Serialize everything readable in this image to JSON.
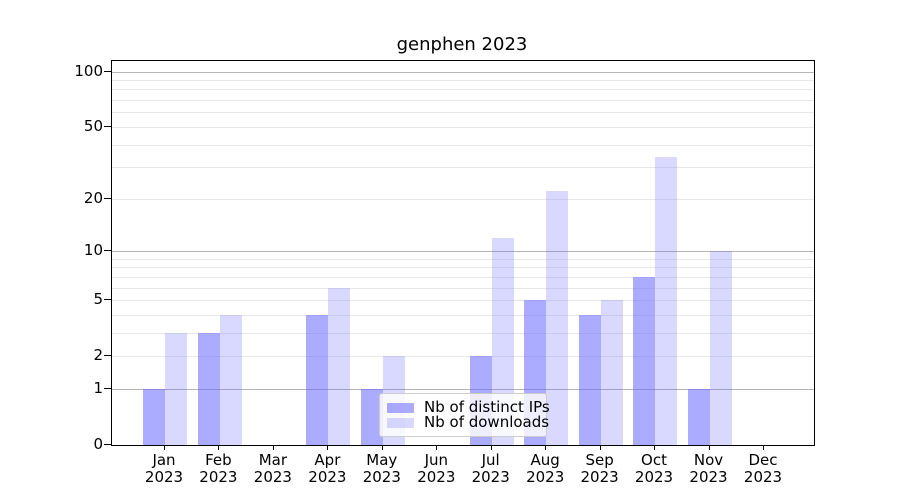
{
  "title": "genphen 2023",
  "chart_data": {
    "type": "bar",
    "title": "genphen 2023",
    "categories": [
      "Jan",
      "Feb",
      "Mar",
      "Apr",
      "May",
      "Jun",
      "Jul",
      "Aug",
      "Sep",
      "Oct",
      "Nov",
      "Dec"
    ],
    "x_tick_year": "2023",
    "x_tick_labels": [
      "Jan 2023",
      "Feb 2023",
      "Mar 2023",
      "Apr 2023",
      "May 2023",
      "Jun 2023",
      "Jul 2023",
      "Aug 2023",
      "Sep 2023",
      "Oct 2023",
      "Nov 2023",
      "Dec 2023"
    ],
    "series": [
      {
        "name": "Nb of distinct IPs",
        "color": "rgba(102,102,255,0.55)",
        "values": [
          1,
          3,
          0,
          4,
          1,
          0,
          2,
          5,
          4,
          7,
          1,
          0
        ]
      },
      {
        "name": "Nb of downloads",
        "color": "rgba(102,102,255,0.25)",
        "values": [
          3,
          4,
          0,
          6,
          2,
          0,
          12,
          22,
          5,
          34,
          10,
          0
        ]
      }
    ],
    "xlabel": "",
    "ylabel": "",
    "y_scale": "log10(1+x)",
    "y_ticks": [
      0,
      1,
      2,
      5,
      10,
      20,
      50,
      100
    ],
    "y_major_gridlines": [
      1,
      10,
      100
    ],
    "y_minor_gridlines": [
      2,
      3,
      4,
      5,
      6,
      7,
      8,
      9,
      20,
      30,
      40,
      50,
      60,
      70,
      80,
      90
    ],
    "ylim": [
      0,
      115
    ],
    "grid": true,
    "legend": {
      "location": "inside-bottom-center",
      "labels": [
        "Nb of distinct IPs",
        "Nb of downloads"
      ]
    },
    "style": {
      "major_grid_color": "#b4b4b4",
      "minor_grid_color": "#e8e8eb",
      "spine_color": "#000000",
      "legend_border_color": "#cccccc"
    }
  }
}
